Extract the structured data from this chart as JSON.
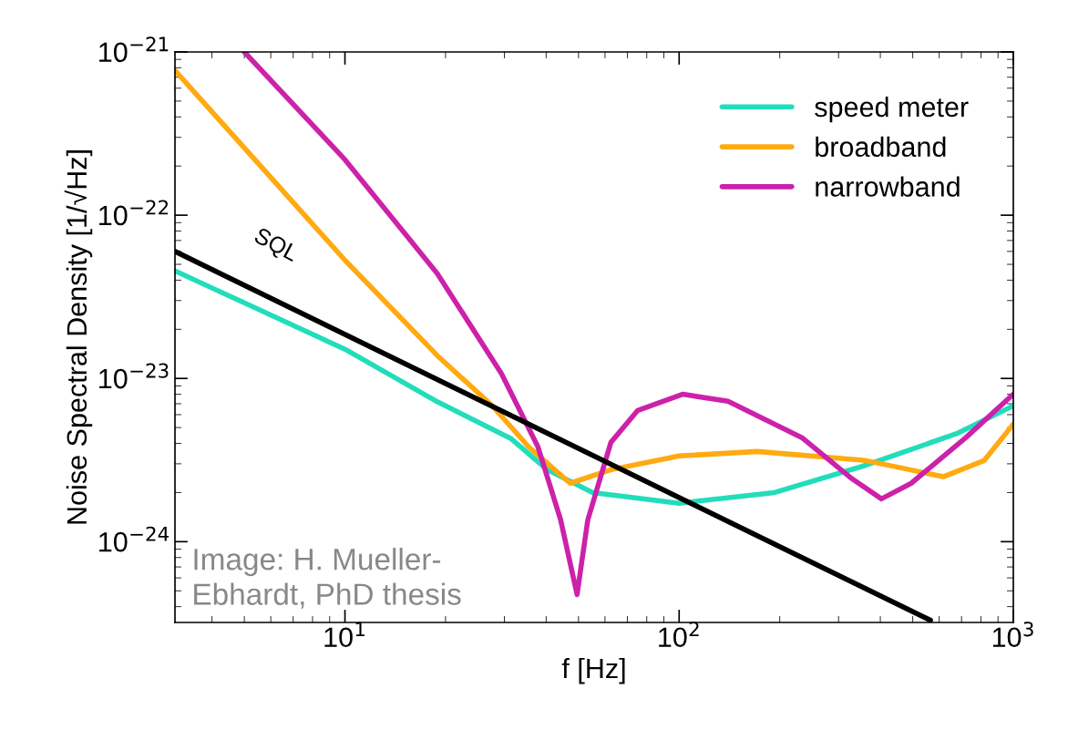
{
  "chart_data": {
    "type": "line",
    "xlabel": "f [Hz]",
    "ylabel": "Noise Spectral Density [1/√Hz]",
    "log": "xy",
    "xlim": [
      3.1,
      1000
    ],
    "ylim": [
      3.2e-25,
      1e-21
    ],
    "xticks": [
      {
        "value": 10,
        "label": "10$^{1}$"
      },
      {
        "value": 100,
        "label": "10$^{2}$"
      },
      {
        "value": 1000,
        "label": "10$^{3}$"
      }
    ],
    "yticks": [
      {
        "value": 1e-24,
        "label": "10$^{−24}$"
      },
      {
        "value": 1e-23,
        "label": "10$^{−23}$"
      },
      {
        "value": 1e-22,
        "label": "10$^{−22}$"
      },
      {
        "value": 1e-21,
        "label": "10$^{−21}$"
      }
    ],
    "grid": false,
    "legend": "top right",
    "line_style": "solid",
    "marker": "none",
    "series": [
      {
        "name": "speed meter",
        "color": "#22ddbb",
        "x": [
          3.1,
          10,
          18.9,
          31.3,
          40.3,
          55.1,
          100,
          193,
          362,
          678,
          1000
        ],
        "values": [
          4.56e-23,
          1.51e-23,
          7.2e-24,
          4.3e-24,
          2.76e-24,
          2e-24,
          1.72e-24,
          2e-24,
          2.94e-24,
          4.6e-24,
          6.8e-24
        ]
      },
      {
        "name": "broadband",
        "color": "#ffaa11",
        "x": [
          3.1,
          10,
          18.9,
          27.6,
          35.5,
          47.2,
          62.5,
          100,
          171,
          362,
          617,
          818,
          1000
        ],
        "values": [
          7.7e-22,
          5.3e-23,
          1.38e-23,
          6.8e-24,
          3.8e-24,
          2.28e-24,
          2.76e-24,
          3.35e-24,
          3.57e-24,
          3.14e-24,
          2.5e-24,
          3.14e-24,
          5.25e-24
        ]
      },
      {
        "name": "narrowband",
        "color": "#cc22aa",
        "x": [
          5.0,
          10,
          18.9,
          29.4,
          37.8,
          44.2,
          49.5,
          53.3,
          62.5,
          75.2,
          102.4,
          140,
          233,
          329,
          403,
          495,
          721,
          1000
        ],
        "values": [
          1e-21,
          2.19e-22,
          4.39e-23,
          1.07e-23,
          3.81e-24,
          1.36e-24,
          4.74e-25,
          1.36e-24,
          4.06e-24,
          6.37e-24,
          8e-24,
          7.25e-24,
          4.34e-24,
          2.43e-24,
          1.83e-24,
          2.28e-24,
          4.34e-24,
          8e-24
        ]
      },
      {
        "color": "#000000",
        "x": [
          3.1,
          565
        ],
        "values": [
          6e-23,
          3.3e-25
        ]
      }
    ],
    "annotations": [
      "SQL",
      "Image: H. Mueller-\nEbhardt, PhD thesis"
    ]
  }
}
